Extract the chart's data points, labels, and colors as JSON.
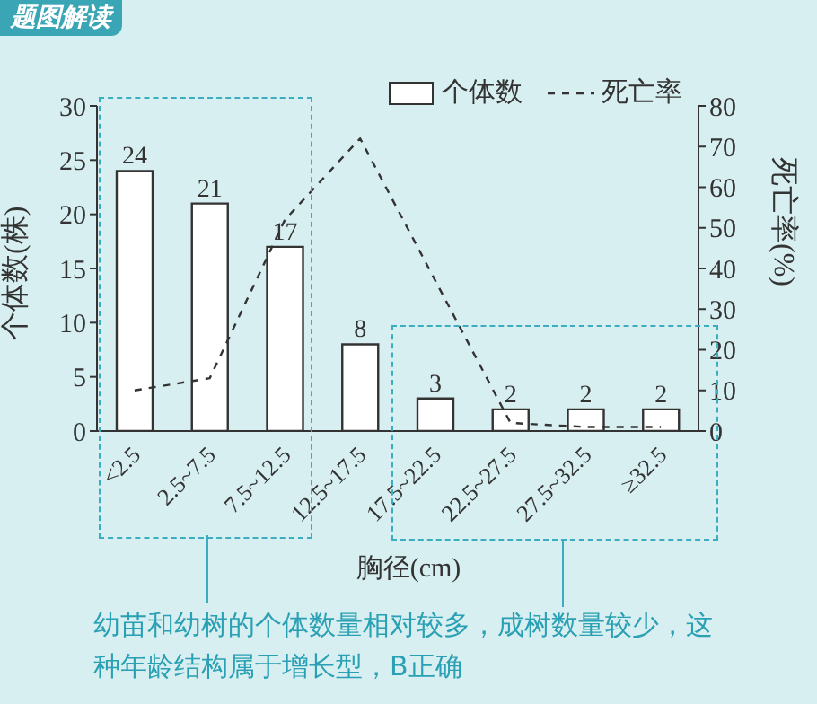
{
  "chart_data": {
    "type": "bar",
    "title": "题图解读",
    "xlabel": "胸径(cm)",
    "ylabel": "个体数(株)",
    "y2label": "死亡率(%)",
    "categories": [
      "<2.5",
      "2.5~7.5",
      "7.5~12.5",
      "12.5~17.5",
      "17.5~22.5",
      "22.5~27.5",
      "27.5~32.5",
      "≥32.5"
    ],
    "series": [
      {
        "name": "个体数",
        "color": "#ffffff",
        "values": [
          24,
          21,
          17,
          8,
          3,
          2,
          2,
          2
        ],
        "value_labels": [
          "24",
          "21",
          "17",
          "8",
          "3",
          "2",
          "2",
          "2"
        ]
      },
      {
        "name": "死亡率",
        "type": "line",
        "axis": "y2",
        "color": "#333333",
        "line_style": "dashed",
        "values": [
          10,
          13,
          52,
          72,
          37,
          2,
          1,
          1
        ]
      }
    ],
    "ylim": [
      0,
      30
    ],
    "yticks": [
      0,
      5,
      10,
      15,
      20,
      25,
      30
    ],
    "y2lim": [
      0,
      80
    ],
    "y2ticks": [
      0,
      10,
      20,
      30,
      40,
      50,
      60,
      70,
      80
    ],
    "legend": "top right",
    "marker": "none",
    "annotations": [
      "幼苗和幼树的个体数量相对较多，成树数量较少，这种年龄结构属于增长型，B正确"
    ]
  }
}
